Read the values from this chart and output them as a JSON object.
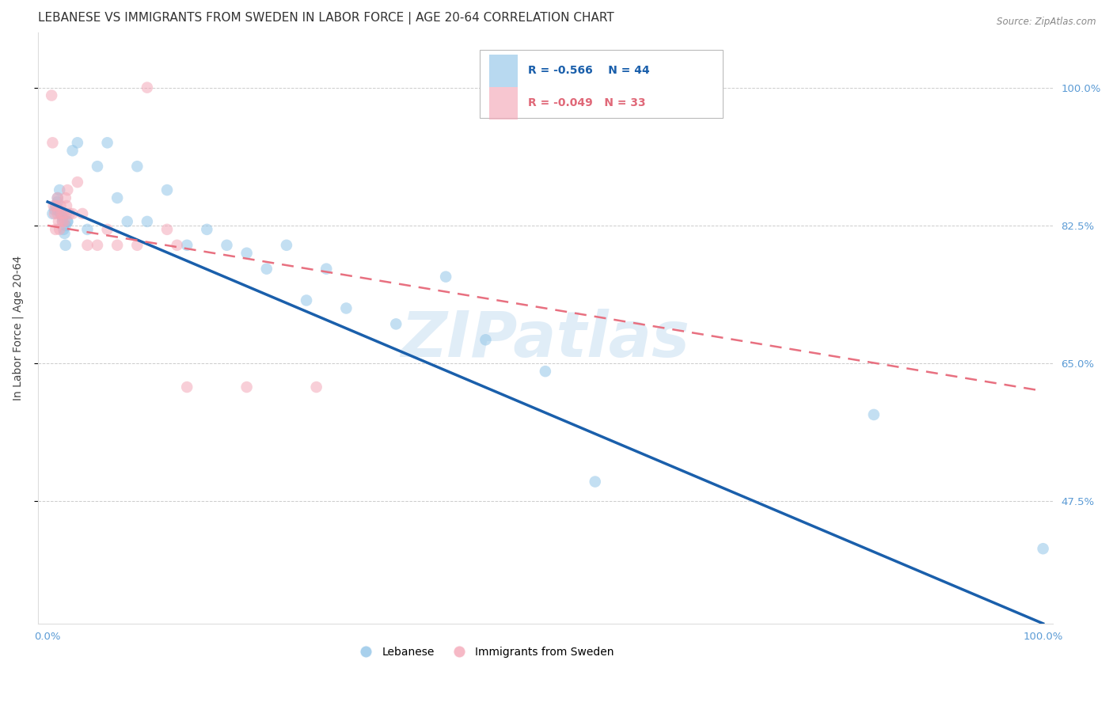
{
  "title": "LEBANESE VS IMMIGRANTS FROM SWEDEN IN LABOR FORCE | AGE 20-64 CORRELATION CHART",
  "source": "Source: ZipAtlas.com",
  "ylabel": "In Labor Force | Age 20-64",
  "watermark": "ZIPatlas",
  "legend_blue_r": "-0.566",
  "legend_blue_n": "44",
  "legend_pink_r": "-0.049",
  "legend_pink_n": "33",
  "blue_label": "Lebanese",
  "pink_label": "Immigrants from Sweden",
  "blue_color": "#92C5E8",
  "pink_color": "#F4A8B8",
  "blue_line_color": "#1A5FAB",
  "pink_line_color": "#E87080",
  "title_fontsize": 11,
  "axis_label_fontsize": 10,
  "tick_fontsize": 9.5,
  "marker_size": 110,
  "marker_alpha": 0.55,
  "grid_color": "#CCCCCC",
  "background_color": "#FFFFFF",
  "title_color": "#333333",
  "tick_color": "#5B9BD5",
  "blue_scatter_x": [
    0.005,
    0.007,
    0.008,
    0.01,
    0.01,
    0.01,
    0.012,
    0.013,
    0.014,
    0.015,
    0.015,
    0.016,
    0.017,
    0.018,
    0.018,
    0.019,
    0.02,
    0.02,
    0.025,
    0.03,
    0.04,
    0.05,
    0.06,
    0.07,
    0.08,
    0.09,
    0.1,
    0.12,
    0.14,
    0.16,
    0.18,
    0.2,
    0.22,
    0.24,
    0.26,
    0.28,
    0.3,
    0.35,
    0.4,
    0.44,
    0.5,
    0.55,
    0.83,
    1.0
  ],
  "blue_scatter_y": [
    0.84,
    0.845,
    0.85,
    0.86,
    0.845,
    0.855,
    0.87,
    0.84,
    0.838,
    0.83,
    0.835,
    0.82,
    0.815,
    0.825,
    0.8,
    0.84,
    0.83,
    0.83,
    0.92,
    0.93,
    0.82,
    0.9,
    0.93,
    0.86,
    0.83,
    0.9,
    0.83,
    0.87,
    0.8,
    0.82,
    0.8,
    0.79,
    0.77,
    0.8,
    0.73,
    0.77,
    0.72,
    0.7,
    0.76,
    0.68,
    0.64,
    0.5,
    0.585,
    0.415
  ],
  "pink_scatter_x": [
    0.004,
    0.005,
    0.006,
    0.007,
    0.008,
    0.009,
    0.01,
    0.01,
    0.011,
    0.012,
    0.013,
    0.014,
    0.015,
    0.016,
    0.017,
    0.018,
    0.019,
    0.02,
    0.022,
    0.025,
    0.03,
    0.035,
    0.04,
    0.05,
    0.06,
    0.07,
    0.09,
    0.1,
    0.12,
    0.13,
    0.14,
    0.2,
    0.27
  ],
  "pink_scatter_y": [
    0.99,
    0.93,
    0.85,
    0.84,
    0.82,
    0.85,
    0.86,
    0.84,
    0.83,
    0.82,
    0.85,
    0.84,
    0.83,
    0.84,
    0.83,
    0.86,
    0.85,
    0.87,
    0.84,
    0.84,
    0.88,
    0.84,
    0.8,
    0.8,
    0.82,
    0.8,
    0.8,
    1.0,
    0.82,
    0.8,
    0.62,
    0.62,
    0.62
  ],
  "blue_line_x0": 0.0,
  "blue_line_x1": 1.0,
  "blue_line_y0": 0.855,
  "blue_line_y1": 0.32,
  "pink_line_x0": 0.0,
  "pink_line_x1": 1.0,
  "pink_line_y0": 0.825,
  "pink_line_y1": 0.615,
  "ylim_min": 0.32,
  "ylim_max": 1.07,
  "xlim_min": -0.01,
  "xlim_max": 1.01,
  "ytick_positions": [
    0.475,
    0.65,
    0.825,
    1.0
  ],
  "ytick_labels": [
    "47.5%",
    "65.0%",
    "82.5%",
    "100.0%"
  ],
  "xtick_positions": [
    0.0,
    0.2,
    0.4,
    0.6,
    0.8,
    1.0
  ],
  "xtick_labels_show": [
    "0.0%",
    "",
    "",
    "",
    "",
    "100.0%"
  ]
}
